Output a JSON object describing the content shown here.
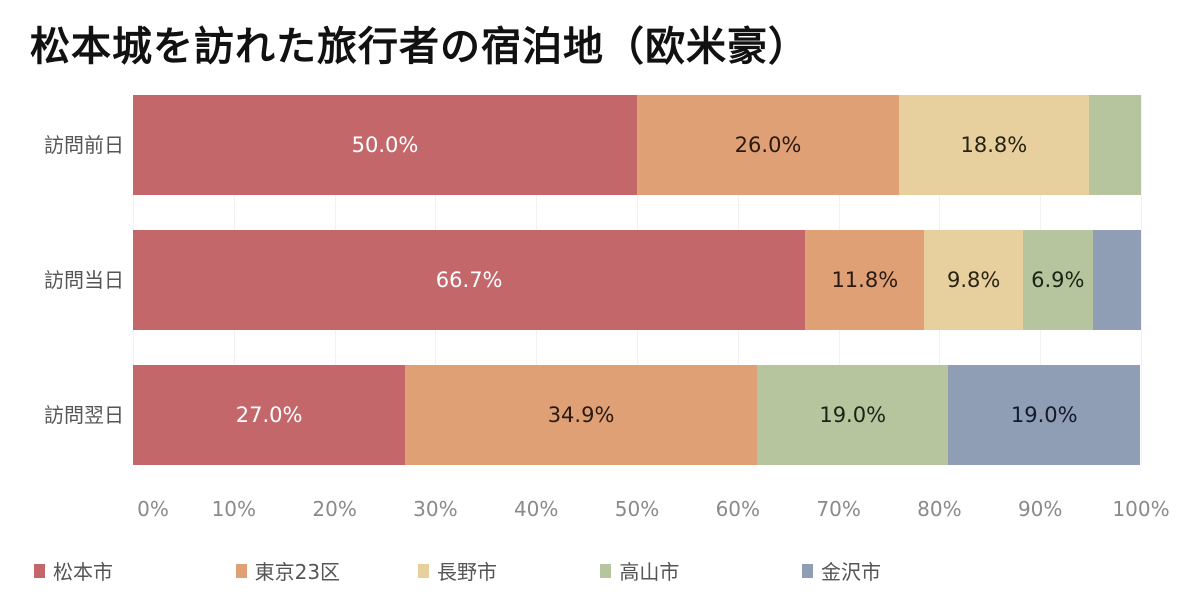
{
  "title": "松本城を訪れた旅行者の宿泊地（欧米豪）",
  "chart_data": {
    "type": "bar",
    "orientation": "horizontal",
    "stacked": true,
    "normalized": true,
    "title": "松本城を訪れた旅行者の宿泊地（欧米豪）",
    "xlabel": "",
    "ylabel": "",
    "xlim": [
      0,
      100
    ],
    "x_ticks": [
      "0%",
      "10%",
      "20%",
      "30%",
      "40%",
      "50%",
      "60%",
      "70%",
      "80%",
      "90%",
      "100%"
    ],
    "grid": true,
    "legend_position": "bottom",
    "categories": [
      "訪問前日",
      "訪問当日",
      "訪問翌日"
    ],
    "series": [
      {
        "name": "松本市",
        "color": "#c4676b",
        "values": [
          50.0,
          66.7,
          27.0
        ],
        "labels": [
          "50.0%",
          "66.7%",
          "27.0%"
        ]
      },
      {
        "name": "東京23区",
        "color": "#dfa075",
        "values": [
          26.0,
          11.8,
          34.9
        ],
        "labels": [
          "26.0%",
          "11.8%",
          "34.9%"
        ]
      },
      {
        "name": "長野市",
        "color": "#e8d09e",
        "values": [
          18.8,
          9.8,
          0.0
        ],
        "labels": [
          "18.8%",
          "9.8%",
          ""
        ]
      },
      {
        "name": "高山市",
        "color": "#b7c59f",
        "values": [
          5.2,
          6.9,
          19.0
        ],
        "labels": [
          "",
          "6.9%",
          "19.0%"
        ]
      },
      {
        "name": "金沢市",
        "color": "#8f9db5",
        "values": [
          0.0,
          4.8,
          19.0
        ],
        "labels": [
          "",
          "",
          "19.0%"
        ]
      }
    ]
  },
  "label_colors": {
    "松本市": "#ffffff",
    "東京23区": "#2a1a12",
    "長野市": "#2a2214",
    "高山市": "#1a2414",
    "金沢市": "#141a2a"
  }
}
